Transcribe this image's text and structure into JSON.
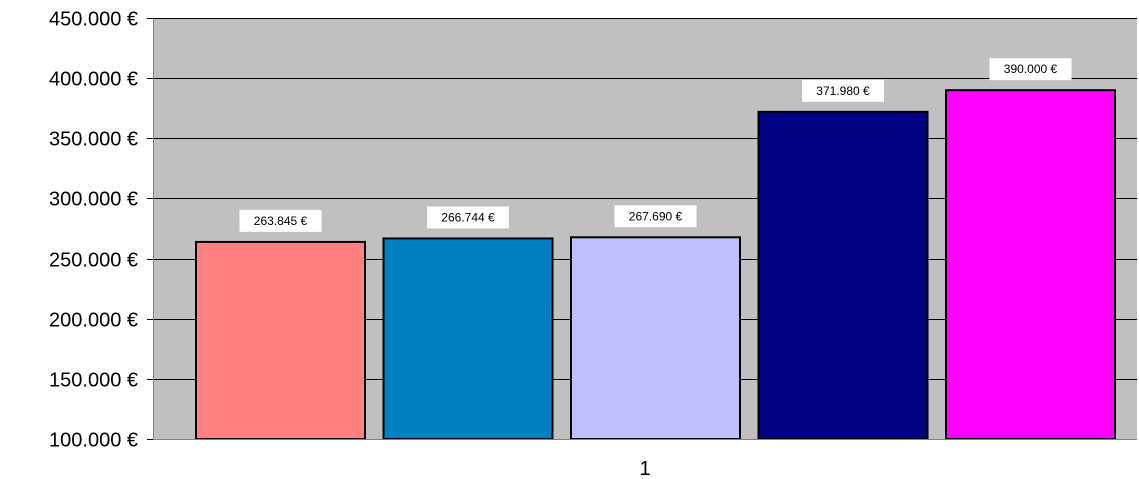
{
  "chart_data": {
    "type": "bar",
    "categories": [
      "1"
    ],
    "series": [
      {
        "values": [
          263845
        ],
        "color": "#ff8080"
      },
      {
        "values": [
          266744
        ],
        "color": "#0080c0"
      },
      {
        "values": [
          267690
        ],
        "color": "#c0c0ff"
      },
      {
        "values": [
          371980
        ],
        "color": "#000080"
      },
      {
        "values": [
          390000
        ],
        "color": "#ff00ff"
      }
    ],
    "data_labels": [
      "263.845 €",
      "266.744 €",
      "267.690 €",
      "371.980 €",
      "390.000 €"
    ],
    "y_ticks": [
      100000,
      150000,
      200000,
      250000,
      300000,
      350000,
      400000,
      450000
    ],
    "y_tick_labels": [
      "100.000 €",
      "150.000 €",
      "200.000 €",
      "250.000 €",
      "300.000 €",
      "350.000 €",
      "400.000 €",
      "450.000 €"
    ],
    "x_tick_labels": [
      "1"
    ],
    "ylim": [
      100000,
      450000
    ],
    "grid": true,
    "plot_background": "#c0c0c0",
    "title": "",
    "xlabel": "",
    "ylabel": ""
  }
}
